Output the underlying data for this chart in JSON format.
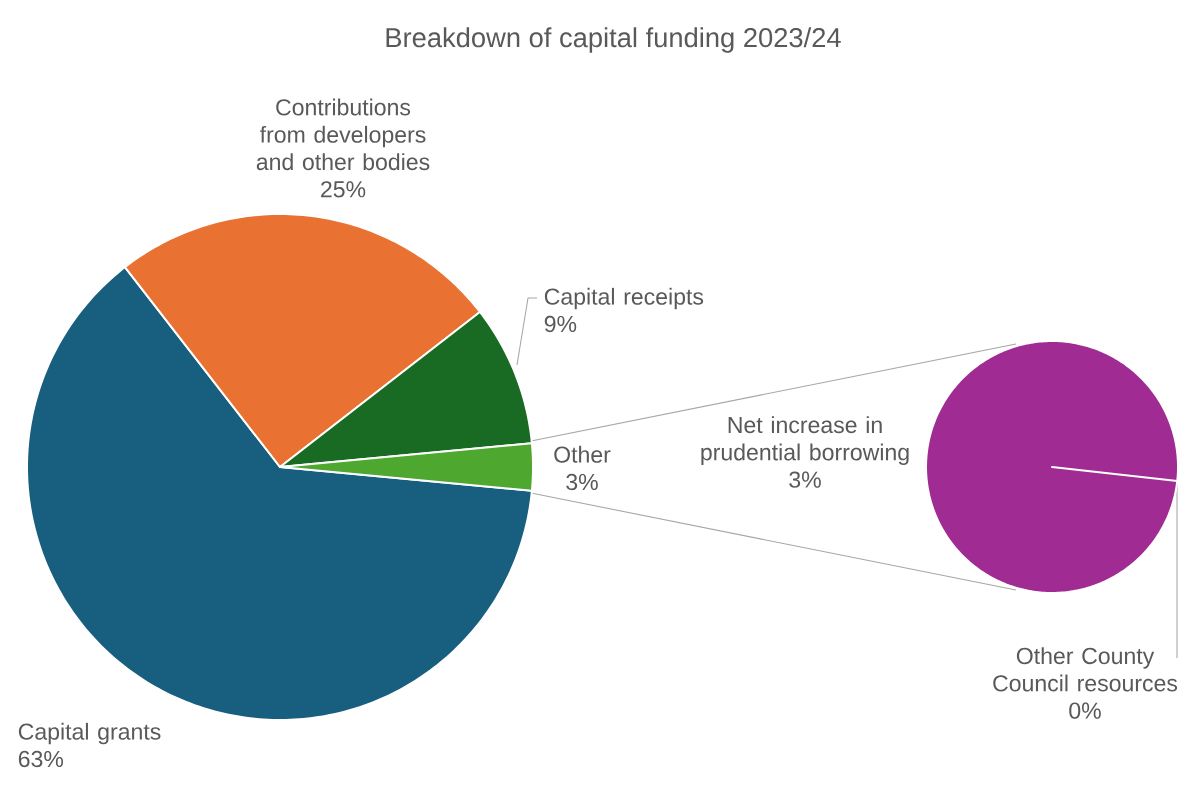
{
  "chart_data": [
    {
      "type": "pie",
      "title": "Breakdown of capital funding 2023/24",
      "categories": [
        "Capital grants",
        "Contributions from developers and other bodies",
        "Capital receipts",
        "Other"
      ],
      "values": [
        63,
        25,
        9,
        3
      ],
      "colors": [
        "#175e7f",
        "#e97132",
        "#196b24",
        "#4ea72e"
      ],
      "value_labels": [
        "63%",
        "25%",
        "9%",
        "3%"
      ]
    },
    {
      "type": "pie",
      "categories": [
        "Net increase in prudential borrowing",
        "Other County Council resources"
      ],
      "values": [
        3,
        0
      ],
      "colors": [
        "#a02b93",
        "#a02b93"
      ],
      "value_labels": [
        "3%",
        "0%"
      ]
    }
  ]
}
